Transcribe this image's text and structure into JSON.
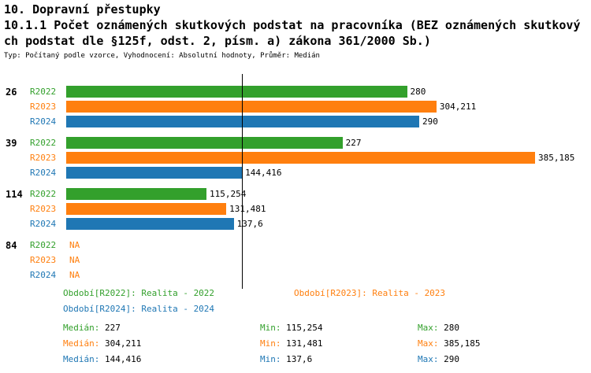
{
  "header": {
    "title": "10. Dopravní přestupky",
    "subtitle1": "10.1.1 Počet oznámených skutkových podstat na pracovníka (BEZ oznámených skutkový",
    "subtitle2": "ch podstat dle §125f, odst. 2, písm. a) zákona 361/2000 Sb.)",
    "meta": "Typ: Počítaný podle vzorce, Vyhodnocení: Absolutní hodnoty, Průměr: Medián"
  },
  "chart_data": {
    "type": "bar",
    "orientation": "horizontal",
    "title": "10.1.1 Počet oznámených skutkových podstat na pracovníka",
    "categories": [
      "26",
      "39",
      "114",
      "84"
    ],
    "series": [
      {
        "name": "R2022",
        "color": "#33a02c",
        "values": [
          280,
          227,
          115.254,
          null
        ],
        "value_labels": [
          "280",
          "227",
          "115,254",
          "NA"
        ]
      },
      {
        "name": "R2023",
        "color": "#ff7f0e",
        "values": [
          304.211,
          385.185,
          131.481,
          null
        ],
        "value_labels": [
          "304,211",
          "385,185",
          "131,481",
          "NA"
        ]
      },
      {
        "name": "R2024",
        "color": "#1f77b4",
        "values": [
          290,
          144.416,
          137.6,
          null
        ],
        "value_labels": [
          "290",
          "144,416",
          "137,6",
          "NA"
        ]
      }
    ],
    "na_color": "#ff7f0e",
    "median_marker_value": 144.416,
    "xlim": [
      0,
      385.185
    ],
    "grid": false,
    "legend_position": "bottom",
    "legend": [
      {
        "text": "Období[R2022]: Realita - 2022",
        "color": "#33a02c"
      },
      {
        "text": "Období[R2023]: Realita - 2023",
        "color": "#ff7f0e"
      },
      {
        "text": "Období[R2024]: Realita - 2024",
        "color": "#1f77b4"
      }
    ],
    "stats": [
      {
        "color": "#33a02c",
        "median_label": "Medián:",
        "median": "227",
        "min_label": "Min:",
        "min": "115,254",
        "max_label": "Max:",
        "max": "280"
      },
      {
        "color": "#ff7f0e",
        "median_label": "Medián:",
        "median": "304,211",
        "min_label": "Min:",
        "min": "131,481",
        "max_label": "Max:",
        "max": "385,185"
      },
      {
        "color": "#1f77b4",
        "median_label": "Medián:",
        "median": "144,416",
        "min_label": "Min:",
        "min": "137,6",
        "max_label": "Max:",
        "max": "290"
      }
    ]
  }
}
